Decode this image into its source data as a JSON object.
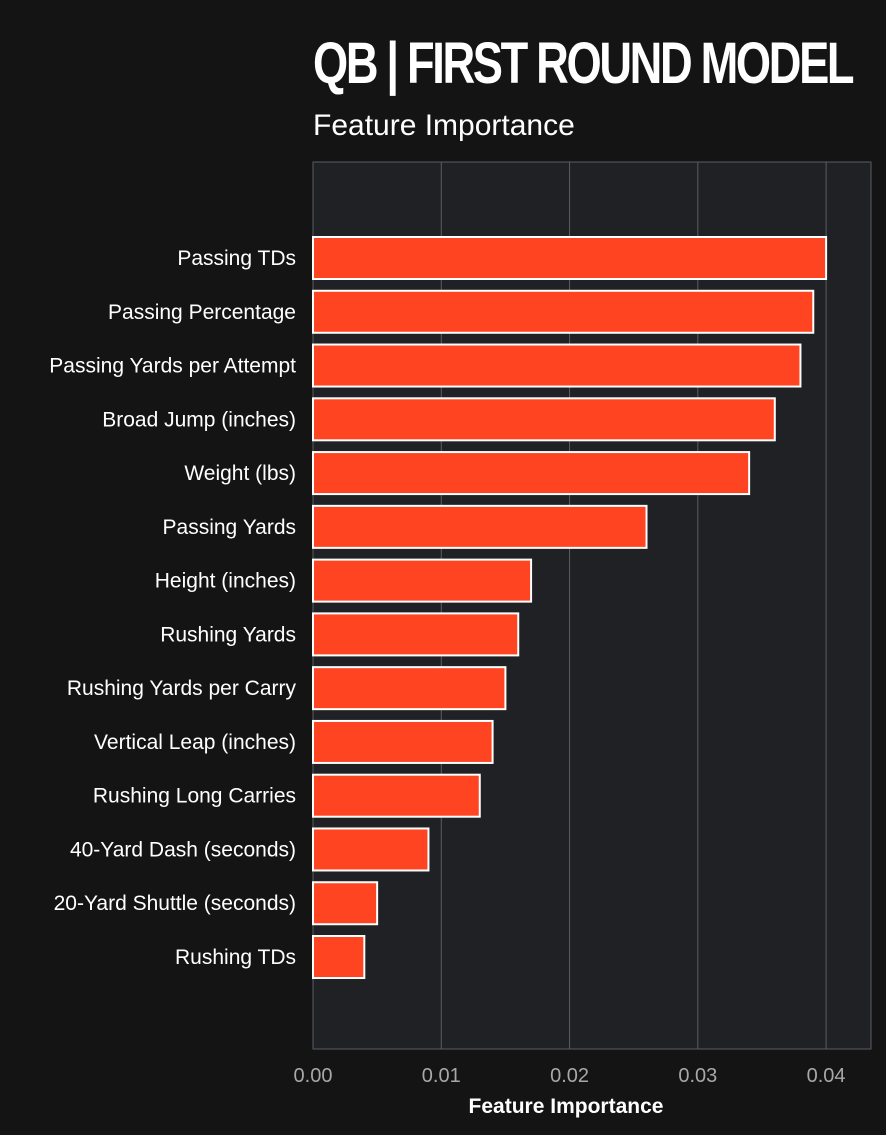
{
  "chart_data": {
    "type": "bar",
    "orientation": "horizontal",
    "title": "QB | FIRST ROUND MODEL",
    "subtitle": "Feature Importance",
    "xlabel": "Feature Importance",
    "ylabel": "",
    "xlim": [
      0.0,
      0.0435
    ],
    "xticks": [
      "0.00",
      "0.01",
      "0.02",
      "0.03",
      "0.04"
    ],
    "grid": true,
    "categories": [
      "Passing TDs",
      "Passing Percentage",
      "Passing Yards per Attempt",
      "Broad Jump (inches)",
      "Weight (lbs)",
      "Passing Yards",
      "Height (inches)",
      "Rushing Yards",
      "Rushing Yards per Carry",
      "Vertical Leap (inches)",
      "Rushing Long Carries",
      "40-Yard Dash (seconds)",
      "20-Yard Shuttle (seconds)",
      "Rushing TDs"
    ],
    "values": [
      0.04,
      0.039,
      0.038,
      0.036,
      0.034,
      0.026,
      0.017,
      0.016,
      0.015,
      0.014,
      0.013,
      0.009,
      0.005,
      0.004
    ],
    "colors": {
      "bar": "#ff4422",
      "bar_edge": "#ffffff",
      "plot_background": "#1f2125",
      "page_background": "#141414",
      "grid": "#5a5d63",
      "tick_label": "#a6a8ab"
    }
  }
}
